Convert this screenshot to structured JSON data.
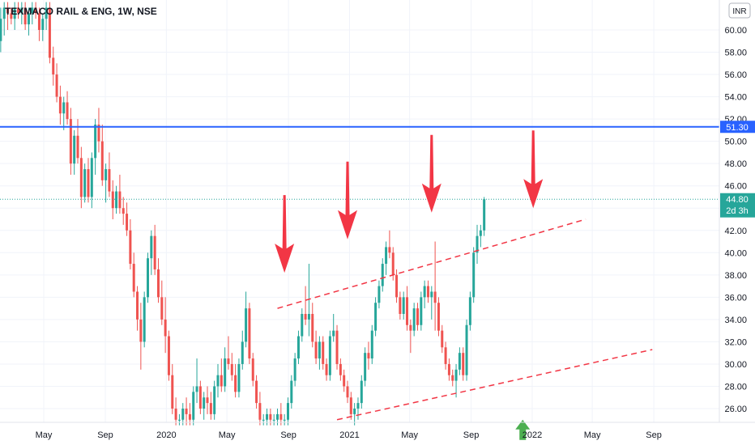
{
  "header": {
    "title": "TEXMACO RAIL & ENG, 1W, NSE"
  },
  "currency_badge": "INR",
  "price_labels": {
    "resistance": "51.30",
    "last_price": "44.80",
    "countdown": "2d 3h"
  },
  "colors": {
    "up": "#26a69a",
    "down": "#ef5350",
    "resistance_line": "#2962ff",
    "channel": "#f23645",
    "arrow_down": "#f23645",
    "arrow_up": "#4caf50",
    "grid": "#f0f3fa",
    "axis_text": "#131722"
  },
  "chart_data": {
    "type": "candlestick",
    "title": "TEXMACO RAIL & ENG, 1W, NSE",
    "interval": "1W",
    "exchange": "NSE",
    "currency": "INR",
    "ylim": [
      24.5,
      62.5
    ],
    "y_ticks": [
      26.0,
      28.0,
      30.0,
      32.0,
      34.0,
      36.0,
      38.0,
      40.0,
      42.0,
      44.0,
      46.0,
      48.0,
      50.0,
      52.0,
      54.0,
      56.0,
      58.0,
      60.0
    ],
    "y_tick_labels": [
      "26.00",
      "28.00",
      "30.00",
      "32.00",
      "34.00",
      "36.00",
      "38.00",
      "40.00",
      "42.00",
      "44.00",
      "46.00",
      "48.00",
      "50.00",
      "52.00",
      "54.00",
      "56.00",
      "58.00",
      "60.00"
    ],
    "x_ticks": [
      {
        "label": "May",
        "date": "2019-05-01"
      },
      {
        "label": "Sep",
        "date": "2019-09-01"
      },
      {
        "label": "2020",
        "date": "2020-01-01"
      },
      {
        "label": "May",
        "date": "2020-05-01"
      },
      {
        "label": "Sep",
        "date": "2020-09-01"
      },
      {
        "label": "2021",
        "date": "2021-01-01"
      },
      {
        "label": "May",
        "date": "2021-05-01"
      },
      {
        "label": "Sep",
        "date": "2021-09-01"
      },
      {
        "label": "2022",
        "date": "2022-01-01"
      },
      {
        "label": "May",
        "date": "2022-05-01"
      },
      {
        "label": "Sep",
        "date": "2022-09-01"
      }
    ],
    "xlim": [
      "2019-01-14",
      "2022-12-12"
    ],
    "first_candle_date": "2019-01-21",
    "last_price": 44.8,
    "resistance_level": 51.3,
    "grid": true,
    "candles": [
      [
        54.0,
        56.5,
        52.0,
        56.0
      ],
      [
        56.0,
        60.0,
        55.0,
        59.0
      ],
      [
        59.0,
        62.0,
        58.0,
        61.0
      ],
      [
        61.0,
        62.5,
        59.5,
        62.0
      ],
      [
        62.0,
        62.5,
        60.0,
        61.5
      ],
      [
        61.5,
        62.0,
        60.5,
        61.0
      ],
      [
        61.0,
        62.5,
        60.0,
        62.0
      ],
      [
        62.0,
        62.5,
        61.0,
        61.5
      ],
      [
        61.5,
        62.5,
        60.5,
        62.0
      ],
      [
        62.0,
        62.5,
        60.0,
        60.5
      ],
      [
        60.5,
        62.0,
        59.5,
        61.5
      ],
      [
        61.5,
        62.5,
        60.5,
        62.0
      ],
      [
        62.0,
        62.5,
        61.0,
        61.5
      ],
      [
        61.5,
        62.0,
        59.0,
        60.0
      ],
      [
        60.0,
        61.5,
        59.0,
        61.0
      ],
      [
        61.0,
        62.5,
        60.0,
        62.0
      ],
      [
        62.0,
        62.5,
        57.0,
        57.5
      ],
      [
        57.5,
        58.5,
        55.0,
        56.0
      ],
      [
        56.0,
        57.0,
        53.5,
        54.0
      ],
      [
        54.0,
        55.0,
        51.5,
        52.5
      ],
      [
        52.5,
        54.0,
        51.0,
        53.5
      ],
      [
        53.5,
        54.5,
        51.5,
        52.0
      ],
      [
        52.0,
        53.0,
        47.0,
        48.0
      ],
      [
        48.0,
        51.0,
        47.0,
        50.5
      ],
      [
        50.5,
        52.0,
        48.0,
        48.5
      ],
      [
        48.5,
        49.5,
        44.0,
        45.0
      ],
      [
        45.0,
        48.0,
        44.5,
        47.5
      ],
      [
        47.5,
        48.5,
        44.5,
        45.0
      ],
      [
        45.0,
        49.0,
        44.0,
        48.5
      ],
      [
        48.5,
        52.0,
        47.0,
        51.5
      ],
      [
        51.5,
        53.0,
        49.0,
        50.0
      ],
      [
        50.0,
        51.5,
        46.0,
        46.5
      ],
      [
        46.5,
        48.0,
        44.5,
        47.5
      ],
      [
        47.5,
        49.0,
        45.0,
        45.5
      ],
      [
        45.5,
        46.5,
        43.0,
        44.0
      ],
      [
        44.0,
        46.0,
        43.5,
        45.5
      ],
      [
        45.5,
        47.0,
        43.5,
        44.0
      ],
      [
        44.0,
        45.0,
        42.5,
        43.5
      ],
      [
        43.5,
        44.5,
        41.5,
        42.0
      ],
      [
        42.0,
        43.0,
        38.5,
        39.0
      ],
      [
        39.0,
        40.0,
        36.0,
        36.5
      ],
      [
        36.5,
        37.0,
        33.0,
        34.0
      ],
      [
        34.0,
        35.5,
        29.5,
        32.0
      ],
      [
        32.0,
        36.5,
        31.5,
        36.0
      ],
      [
        36.0,
        40.0,
        35.5,
        39.5
      ],
      [
        39.5,
        42.0,
        38.0,
        41.5
      ],
      [
        41.5,
        42.5,
        38.0,
        38.5
      ],
      [
        38.5,
        39.5,
        35.5,
        36.0
      ],
      [
        36.0,
        37.5,
        33.5,
        34.0
      ],
      [
        34.0,
        36.0,
        31.0,
        32.5
      ],
      [
        32.5,
        33.0,
        28.5,
        29.0
      ],
      [
        29.0,
        30.0,
        25.5,
        26.0
      ],
      [
        26.0,
        27.0,
        24.5,
        25.0
      ],
      [
        25.0,
        25.5,
        24.5,
        25.0
      ],
      [
        25.0,
        26.5,
        24.5,
        26.0
      ],
      [
        26.0,
        27.0,
        24.5,
        25.5
      ],
      [
        25.5,
        26.5,
        24.5,
        25.0
      ],
      [
        25.0,
        28.0,
        24.5,
        27.5
      ],
      [
        27.5,
        30.5,
        26.5,
        28.0
      ],
      [
        28.0,
        28.5,
        25.5,
        26.0
      ],
      [
        26.0,
        27.5,
        25.0,
        27.0
      ],
      [
        27.0,
        28.0,
        25.5,
        26.5
      ],
      [
        26.5,
        27.5,
        25.0,
        25.5
      ],
      [
        25.5,
        28.5,
        25.0,
        28.0
      ],
      [
        28.0,
        30.0,
        27.0,
        29.0
      ],
      [
        29.0,
        30.5,
        27.5,
        28.0
      ],
      [
        28.0,
        31.5,
        27.5,
        30.5
      ],
      [
        30.5,
        32.5,
        29.5,
        30.0
      ],
      [
        30.0,
        31.0,
        28.5,
        29.0
      ],
      [
        29.0,
        30.0,
        27.0,
        27.5
      ],
      [
        27.5,
        30.5,
        27.0,
        30.0
      ],
      [
        30.0,
        33.0,
        29.5,
        32.0
      ],
      [
        32.0,
        36.5,
        31.5,
        35.0
      ],
      [
        35.0,
        35.5,
        30.0,
        30.5
      ],
      [
        30.5,
        31.0,
        28.0,
        28.5
      ],
      [
        28.5,
        29.0,
        26.0,
        26.5
      ],
      [
        26.5,
        27.5,
        24.5,
        25.0
      ],
      [
        25.0,
        25.5,
        24.5,
        25.0
      ],
      [
        25.0,
        26.0,
        24.5,
        25.5
      ],
      [
        25.5,
        26.0,
        24.5,
        25.0
      ],
      [
        25.0,
        25.5,
        24.5,
        25.0
      ],
      [
        25.0,
        26.0,
        24.5,
        25.5
      ],
      [
        25.5,
        26.5,
        24.5,
        25.0
      ],
      [
        25.0,
        25.5,
        24.5,
        25.0
      ],
      [
        25.0,
        27.0,
        24.5,
        26.5
      ],
      [
        26.5,
        29.0,
        26.0,
        28.5
      ],
      [
        28.5,
        31.0,
        28.0,
        30.5
      ],
      [
        30.5,
        33.0,
        30.0,
        32.5
      ],
      [
        32.5,
        35.0,
        32.0,
        34.5
      ],
      [
        34.5,
        37.0,
        33.5,
        34.0
      ],
      [
        34.0,
        39.0,
        32.5,
        34.5
      ],
      [
        34.5,
        35.5,
        31.5,
        32.0
      ],
      [
        32.0,
        33.0,
        30.0,
        30.5
      ],
      [
        30.5,
        32.5,
        29.5,
        32.0
      ],
      [
        32.0,
        32.5,
        29.5,
        30.0
      ],
      [
        30.0,
        30.5,
        28.5,
        29.0
      ],
      [
        29.0,
        33.0,
        28.5,
        32.5
      ],
      [
        32.5,
        34.5,
        32.0,
        33.0
      ],
      [
        33.0,
        33.5,
        29.5,
        30.0
      ],
      [
        30.0,
        30.5,
        28.5,
        29.0
      ],
      [
        29.0,
        29.5,
        27.5,
        28.0
      ],
      [
        28.0,
        28.5,
        26.5,
        27.0
      ],
      [
        27.0,
        27.5,
        25.0,
        25.5
      ],
      [
        25.5,
        26.5,
        24.5,
        26.0
      ],
      [
        26.0,
        27.0,
        25.0,
        26.5
      ],
      [
        26.5,
        29.0,
        26.0,
        28.5
      ],
      [
        28.5,
        31.5,
        28.0,
        31.0
      ],
      [
        31.0,
        32.0,
        29.5,
        30.5
      ],
      [
        30.5,
        33.5,
        30.0,
        33.0
      ],
      [
        33.0,
        36.0,
        32.5,
        35.5
      ],
      [
        35.5,
        37.5,
        35.0,
        37.0
      ],
      [
        37.0,
        39.5,
        36.5,
        39.0
      ],
      [
        39.0,
        41.0,
        38.0,
        40.5
      ],
      [
        40.5,
        42.0,
        39.5,
        40.0
      ],
      [
        40.0,
        40.5,
        37.5,
        38.0
      ],
      [
        38.0,
        38.5,
        35.5,
        36.0
      ],
      [
        36.0,
        36.5,
        34.0,
        34.5
      ],
      [
        34.5,
        36.5,
        34.0,
        36.0
      ],
      [
        36.0,
        37.0,
        33.0,
        33.5
      ],
      [
        33.5,
        34.0,
        31.0,
        33.0
      ],
      [
        33.0,
        35.5,
        32.5,
        35.0
      ],
      [
        35.0,
        35.5,
        33.0,
        33.5
      ],
      [
        33.5,
        36.5,
        33.0,
        36.0
      ],
      [
        36.0,
        37.5,
        35.0,
        37.0
      ],
      [
        37.0,
        37.5,
        35.5,
        36.0
      ],
      [
        36.0,
        37.0,
        34.0,
        36.5
      ],
      [
        36.5,
        41.0,
        33.0,
        35.5
      ],
      [
        35.5,
        36.0,
        32.5,
        33.0
      ],
      [
        33.0,
        33.5,
        31.0,
        31.5
      ],
      [
        31.5,
        32.0,
        29.5,
        30.0
      ],
      [
        30.0,
        30.5,
        28.5,
        29.0
      ],
      [
        29.0,
        29.5,
        28.0,
        28.5
      ],
      [
        28.5,
        30.0,
        27.0,
        29.5
      ],
      [
        29.5,
        31.5,
        29.0,
        31.0
      ],
      [
        31.0,
        31.5,
        28.5,
        29.0
      ],
      [
        29.0,
        34.0,
        28.5,
        33.5
      ],
      [
        33.5,
        36.5,
        33.0,
        36.0
      ],
      [
        36.0,
        40.5,
        35.5,
        40.0
      ],
      [
        40.0,
        42.5,
        39.0,
        41.5
      ],
      [
        41.5,
        42.5,
        40.5,
        42.0
      ],
      [
        42.0,
        45.0,
        41.5,
        44.8
      ]
    ],
    "annotations": {
      "resistance_line": {
        "price": 51.3,
        "type": "horizontal"
      },
      "channel_upper": [
        {
          "date": "2020-08-10",
          "price": 35.0
        },
        {
          "date": "2022-04-18",
          "price": 43.0
        }
      ],
      "channel_lower": [
        {
          "date": "2020-12-07",
          "price": 25.0
        },
        {
          "date": "2022-08-29",
          "price": 31.3
        }
      ],
      "arrows_down": [
        {
          "date": "2020-08-24",
          "price": 38.2
        },
        {
          "date": "2020-12-28",
          "price": 41.2
        },
        {
          "date": "2021-06-14",
          "price": 43.6
        },
        {
          "date": "2022-01-03",
          "price": 44.0
        }
      ],
      "arrows_up": [
        {
          "date": "2021-12-13",
          "price": 25.0
        }
      ]
    }
  }
}
